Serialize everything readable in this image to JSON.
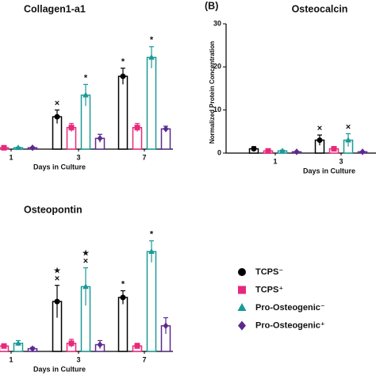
{
  "chart_data": [
    {
      "type": "bar",
      "title": "Collagen1-a1",
      "xlabel": "Days in Culture",
      "categories": [
        "1",
        "3",
        "7"
      ],
      "ylim": [
        0,
        100
      ],
      "series": [
        {
          "name": "TCPS⁻",
          "color": "#000000",
          "marker": "circle",
          "values": [
            1,
            24,
            54
          ],
          "errors": [
            0.5,
            5,
            6
          ],
          "annotations": [
            null,
            [
              "×"
            ],
            [
              "*"
            ]
          ]
        },
        {
          "name": "TCPS⁺",
          "color": "#e8287a",
          "marker": "square",
          "values": [
            1,
            16,
            16
          ],
          "errors": [
            0.5,
            3,
            3
          ],
          "annotations": [
            null,
            null,
            null
          ]
        },
        {
          "name": "Pro-Osteogenic⁻",
          "color": "#1a9a96",
          "marker": "triangle",
          "values": [
            1,
            40,
            68
          ],
          "errors": [
            0.5,
            8,
            8
          ],
          "annotations": [
            null,
            [
              "*"
            ],
            [
              "*"
            ]
          ]
        },
        {
          "name": "Pro-Osteogenic⁺",
          "color": "#5b2a8c",
          "marker": "diamond",
          "values": [
            1,
            8,
            15
          ],
          "errors": [
            0.5,
            3,
            2
          ],
          "annotations": [
            null,
            null,
            null
          ]
        }
      ]
    },
    {
      "type": "bar",
      "panel_label": "(B)",
      "title": "Osteocalcin",
      "xlabel": "Days in Culture",
      "ylabel": "Normalized Protein Concentration",
      "categories": [
        "1",
        "3"
      ],
      "ylim": [
        0,
        30
      ],
      "yticks": [
        0,
        10,
        20,
        30
      ],
      "series": [
        {
          "color": "#000000",
          "marker": "circle",
          "values": [
            1,
            3
          ],
          "errors": [
            0.5,
            1.2
          ],
          "annotations": [
            null,
            [
              "×"
            ]
          ]
        },
        {
          "color": "#e8287a",
          "marker": "square",
          "values": [
            0.5,
            1
          ],
          "errors": [
            0.2,
            0.4
          ],
          "annotations": [
            null,
            null
          ]
        },
        {
          "color": "#1a9a96",
          "marker": "triangle",
          "values": [
            0.5,
            3
          ],
          "errors": [
            0.2,
            1.5
          ],
          "annotations": [
            null,
            [
              "×"
            ]
          ]
        },
        {
          "color": "#5b2a8c",
          "marker": "diamond",
          "values": [
            0.3,
            0.3
          ],
          "errors": [
            0.1,
            0.1
          ],
          "annotations": [
            null,
            null
          ]
        }
      ]
    },
    {
      "type": "bar",
      "title": "Osteopontin",
      "xlabel": "Days in Culture",
      "categories": [
        "1",
        "3",
        "7"
      ],
      "ylim": [
        0,
        100
      ],
      "series": [
        {
          "color": "#000000",
          "marker": "circle",
          "values": [
            2,
            37,
            40
          ],
          "errors": [
            1,
            12,
            5
          ],
          "annotations": [
            null,
            [
              "★",
              "×"
            ],
            [
              "*"
            ]
          ]
        },
        {
          "color": "#e8287a",
          "marker": "square",
          "values": [
            4,
            6,
            4
          ],
          "errors": [
            1,
            3,
            2
          ],
          "annotations": [
            null,
            null,
            null
          ]
        },
        {
          "color": "#1a9a96",
          "marker": "triangle",
          "values": [
            6,
            48,
            74
          ],
          "errors": [
            2,
            14,
            8
          ],
          "annotations": [
            null,
            [
              "★",
              "×"
            ],
            [
              "*"
            ]
          ]
        },
        {
          "color": "#5b2a8c",
          "marker": "diamond",
          "values": [
            2,
            5,
            19
          ],
          "errors": [
            1,
            3,
            6
          ],
          "annotations": [
            null,
            null,
            null
          ]
        }
      ]
    }
  ]
}
